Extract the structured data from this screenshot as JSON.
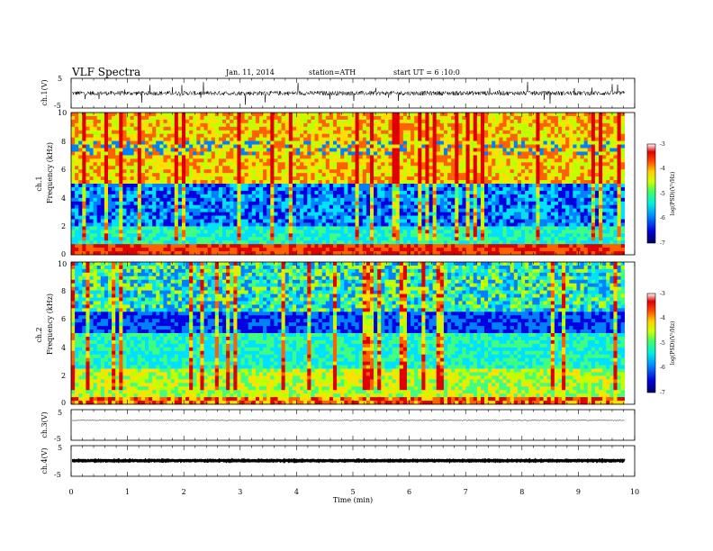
{
  "header": {
    "title": "VLF Spectra",
    "date": "Jan. 11, 2014",
    "station": "station=ATH",
    "start": "start UT = 6 :10:0"
  },
  "colors": {
    "colormap": [
      "#000070",
      "#0000e0",
      "#0080ff",
      "#00e0ff",
      "#40ff80",
      "#c0ff00",
      "#ffe000",
      "#ff6000",
      "#e00000",
      "#ffffff"
    ]
  },
  "chart_data": [
    {
      "type": "line",
      "name": "ch1-waveform",
      "ylabel": "ch.1(V)",
      "ylim": [
        -5,
        5
      ],
      "yticks": [
        "5",
        "-5"
      ],
      "description_values": {
        "baseline": 0,
        "typical_amplitude": 1.5,
        "max_spike": 4
      }
    },
    {
      "type": "heatmap",
      "name": "ch1-spectrogram",
      "ylabel_top": "ch.1",
      "ylabel": "Frequency (kHz)",
      "ylim": [
        0,
        10
      ],
      "yticks": [
        "0",
        "2",
        "4",
        "6",
        "8",
        "10"
      ],
      "xlim": [
        0,
        10
      ],
      "colorbar": {
        "label": "log(PSD)(V²/Hz)",
        "range": [
          -7,
          -3
        ],
        "ticks": [
          "-3",
          "-4",
          "-5",
          "-6",
          "-7"
        ]
      }
    },
    {
      "type": "heatmap",
      "name": "ch2-spectrogram",
      "ylabel_top": "ch.2",
      "ylabel": "Frequency (kHz)",
      "ylim": [
        0,
        10
      ],
      "yticks": [
        "0",
        "2",
        "4",
        "6",
        "8",
        "10"
      ],
      "xlim": [
        0,
        10
      ],
      "colorbar": {
        "label": "log(PSD)(V²/Hz)",
        "range": [
          -7,
          -3
        ],
        "ticks": [
          "-3",
          "-4",
          "-5",
          "-6",
          "-7"
        ]
      }
    },
    {
      "type": "line",
      "name": "ch3-waveform",
      "ylabel": "ch.3(V)",
      "ylim": [
        -5,
        5
      ],
      "yticks": [
        "5",
        "-5"
      ],
      "description_values": {
        "baseline": 0.5,
        "typical_amplitude": 0.1
      }
    },
    {
      "type": "line",
      "name": "ch4-waveform",
      "ylabel": "ch.4(V)",
      "ylim": [
        -5,
        5
      ],
      "yticks": [
        "5",
        "-5"
      ],
      "description_values": {
        "baseline": 0.1,
        "typical_amplitude": 0.4
      }
    }
  ],
  "xaxis": {
    "label": "Time (min)",
    "ticks": [
      "0",
      "1",
      "2",
      "3",
      "4",
      "5",
      "6",
      "7",
      "8",
      "9",
      "10"
    ],
    "data_end": 9.82
  }
}
